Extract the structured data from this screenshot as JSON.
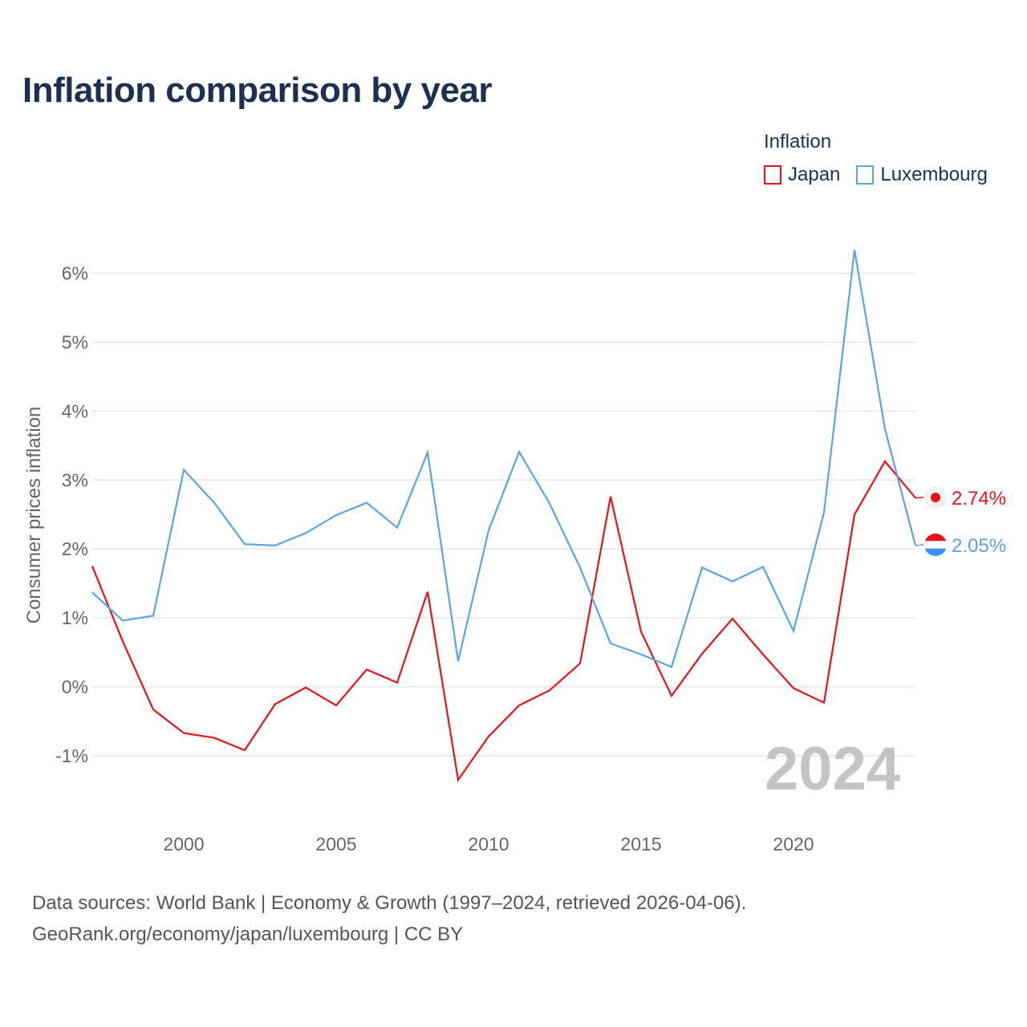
{
  "title": "Inflation comparison by year",
  "legend": {
    "title": "Inflation",
    "items": [
      {
        "label": "Japan",
        "color": "#e8121b"
      },
      {
        "label": "Luxembourg",
        "color": "#5ba4e6"
      }
    ]
  },
  "watermark_year": "2024",
  "source": {
    "line1": "Data sources: World Bank | Economy & Growth (1997–2024, retrieved 2026-04-06).",
    "line2": "GeoRank.org/economy/japan/luxembourg | CC BY"
  },
  "end_labels": {
    "japan": "2.74%",
    "luxembourg": "2.05%"
  },
  "colors": {
    "japan": "#e8121b",
    "luxembourg": "#5ba4e6",
    "title": "#1c3150",
    "grid": "#e6e6e6",
    "axis_text": "#666666"
  },
  "chart_data": {
    "type": "line",
    "title": "Inflation comparison by year",
    "xlabel": "",
    "ylabel": "Consumer prices inflation",
    "x": [
      1997,
      1998,
      1999,
      2000,
      2001,
      2002,
      2003,
      2004,
      2005,
      2006,
      2007,
      2008,
      2009,
      2010,
      2011,
      2012,
      2013,
      2014,
      2015,
      2016,
      2017,
      2018,
      2019,
      2020,
      2021,
      2022,
      2023,
      2024
    ],
    "xlim": [
      1997,
      2024
    ],
    "ylim": [
      -1.5,
      6.5
    ],
    "x_ticks": [
      2000,
      2005,
      2010,
      2015,
      2020
    ],
    "y_ticks": [
      -1,
      0,
      1,
      2,
      3,
      4,
      5,
      6
    ],
    "y_tick_labels": [
      "-1%",
      "0%",
      "1%",
      "2%",
      "3%",
      "4%",
      "5%",
      "6%"
    ],
    "grid": true,
    "legend_position": "top-right",
    "series": [
      {
        "name": "Japan",
        "color": "#e8121b",
        "values": [
          1.75,
          0.66,
          -0.33,
          -0.67,
          -0.74,
          -0.92,
          -0.25,
          -0.01,
          -0.27,
          0.25,
          0.06,
          1.38,
          -1.35,
          -0.72,
          -0.27,
          -0.05,
          0.34,
          2.76,
          0.8,
          -0.13,
          0.48,
          0.99,
          0.47,
          -0.02,
          -0.23,
          2.5,
          3.27,
          2.74
        ]
      },
      {
        "name": "Luxembourg",
        "color": "#5ba4e6",
        "values": [
          1.37,
          0.96,
          1.03,
          3.15,
          2.67,
          2.07,
          2.05,
          2.23,
          2.49,
          2.67,
          2.31,
          3.4,
          0.37,
          2.27,
          3.41,
          2.66,
          1.73,
          0.63,
          0.47,
          0.29,
          1.73,
          1.53,
          1.74,
          0.81,
          2.53,
          6.34,
          3.74,
          2.05
        ]
      }
    ]
  }
}
